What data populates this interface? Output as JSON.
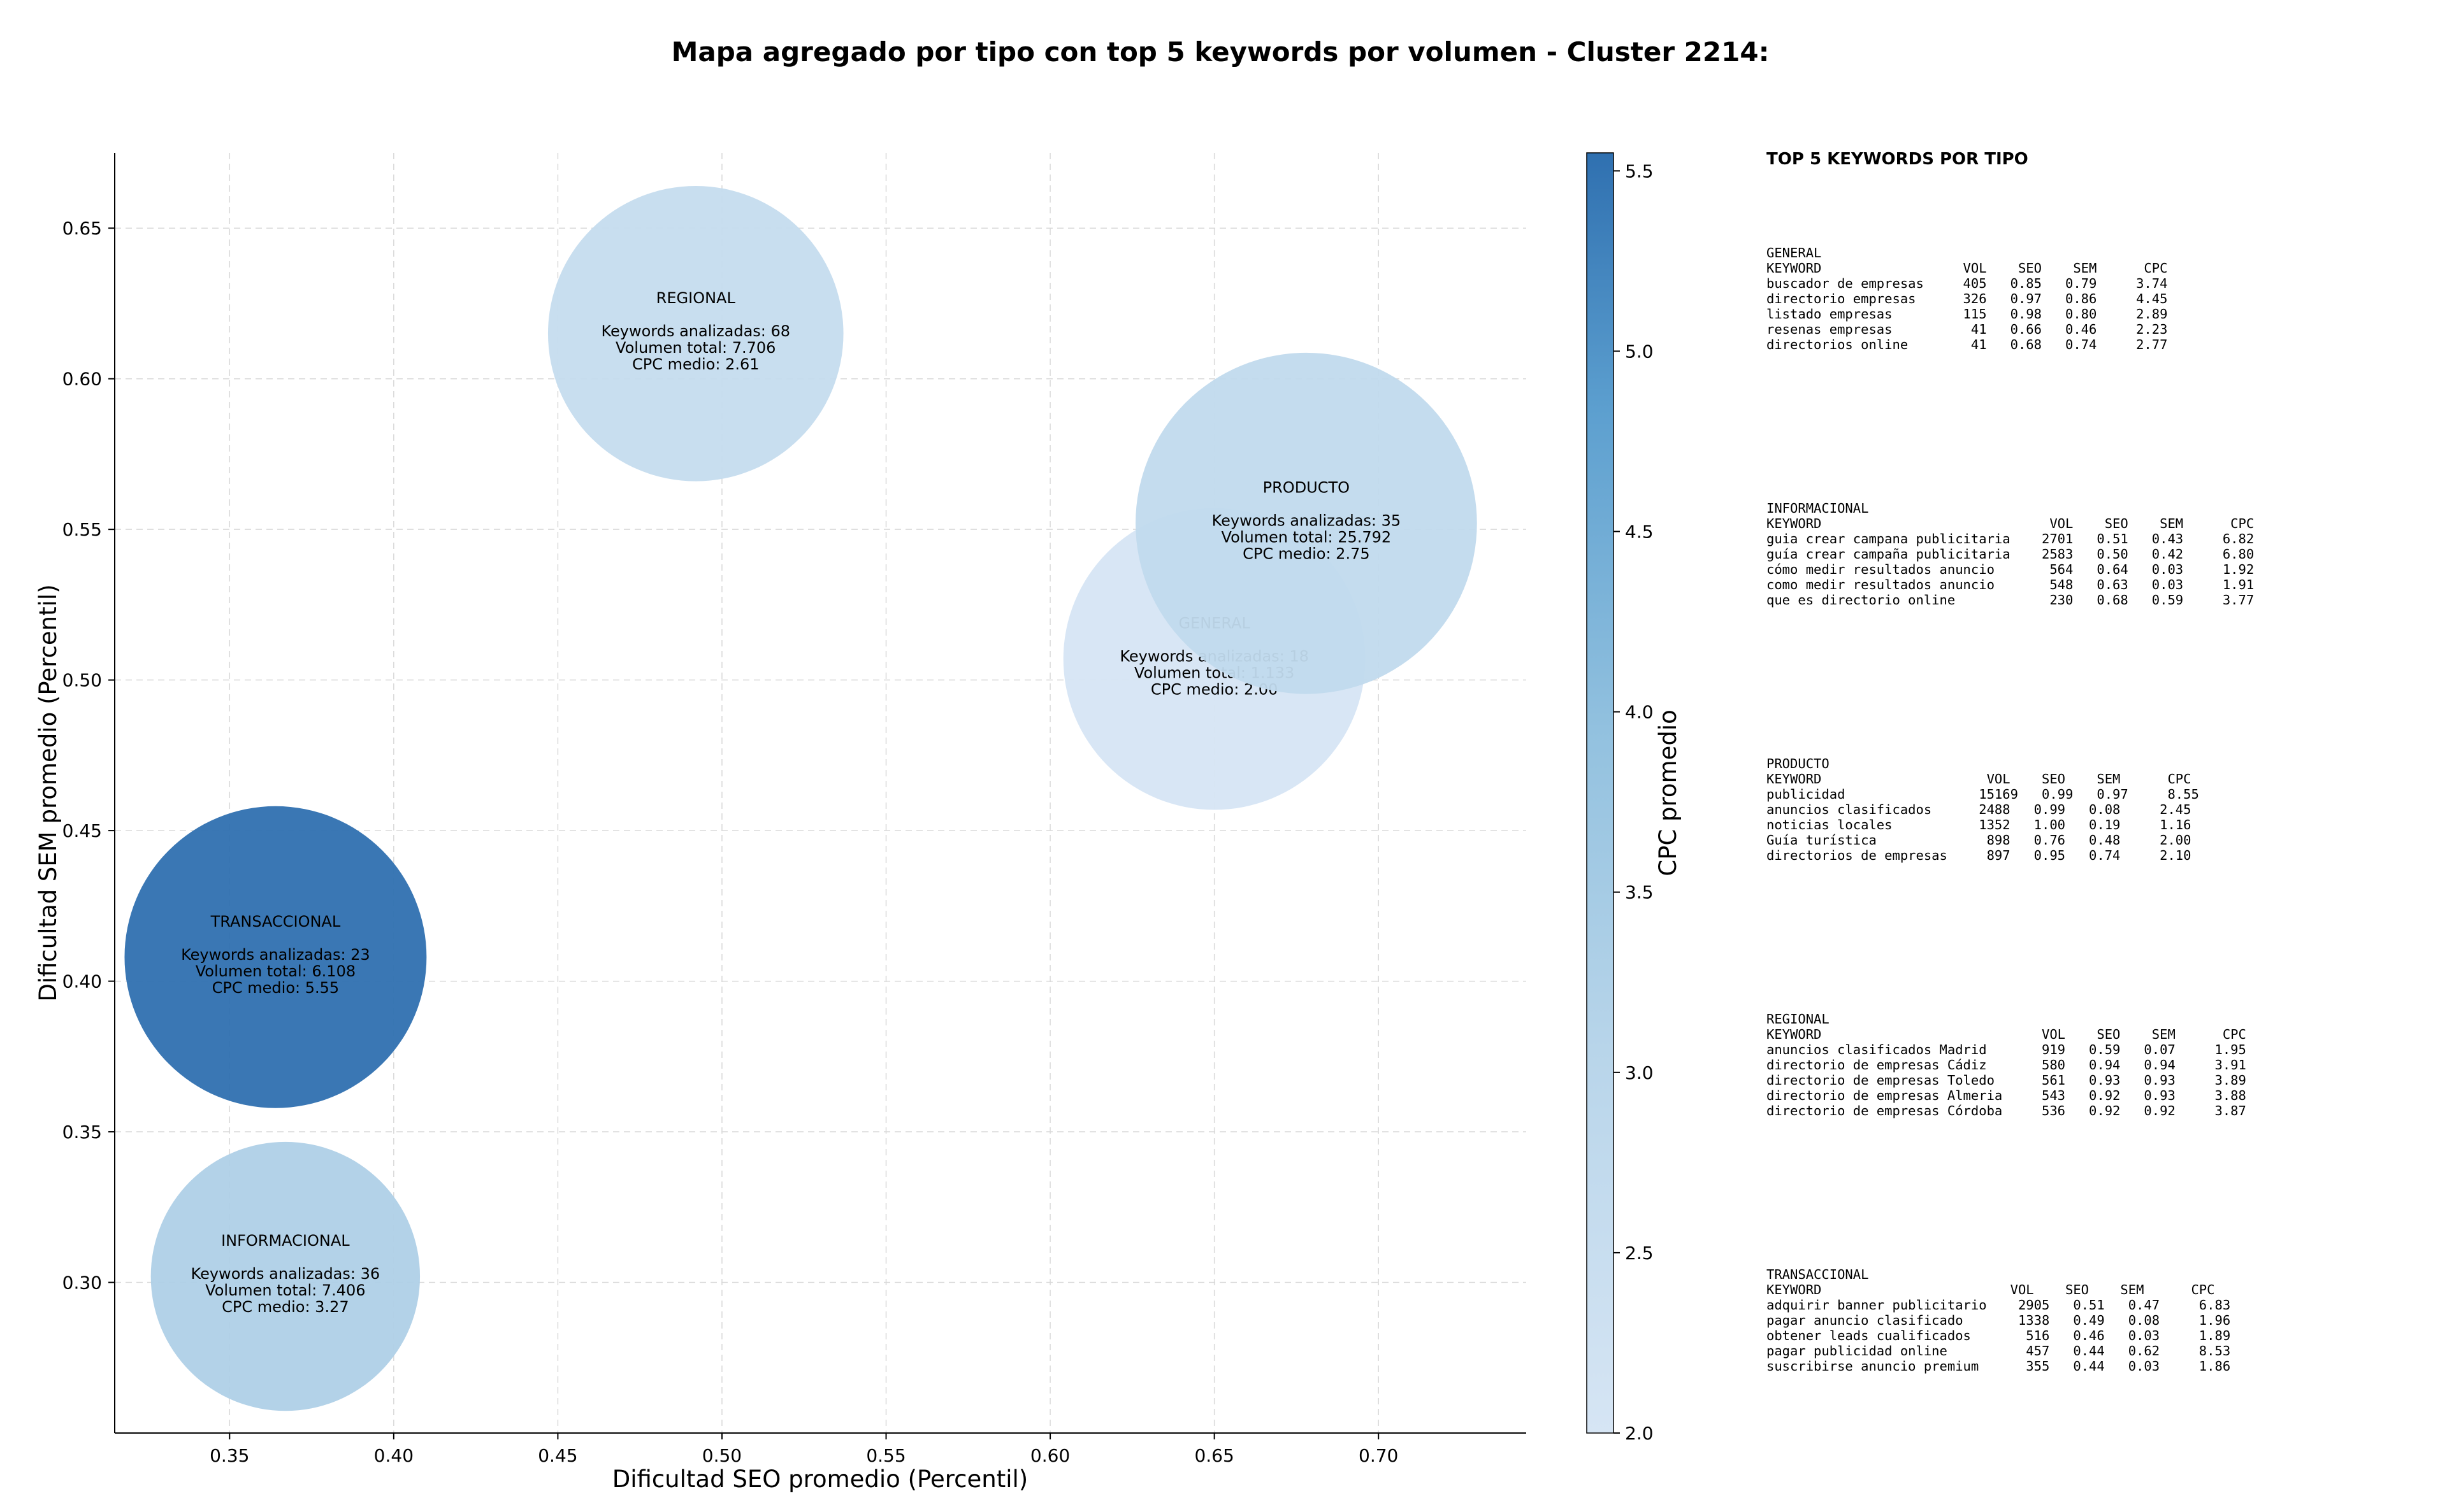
{
  "chart_data": {
    "type": "scatter",
    "title": "Mapa agregado por tipo con top 5 keywords por volumen - Cluster 2214:",
    "xlabel": "Dificultad SEO promedio (Percentil)",
    "ylabel": "Dificultad SEM promedio (Percentil)",
    "xlim": [
      0.315,
      0.745
    ],
    "ylim": [
      0.25,
      0.675
    ],
    "xticks": [
      "0.35",
      "0.40",
      "0.45",
      "0.50",
      "0.55",
      "0.60",
      "0.65",
      "0.70"
    ],
    "yticks": [
      "0.30",
      "0.35",
      "0.40",
      "0.45",
      "0.50",
      "0.55",
      "0.60",
      "0.65"
    ],
    "grid": true,
    "colorbar": {
      "label": "CPC promedio",
      "range": [
        2.0,
        5.55
      ],
      "ticks": [
        "2.0",
        "2.5",
        "3.0",
        "3.5",
        "4.0",
        "4.5",
        "5.0",
        "5.5"
      ]
    },
    "points": [
      {
        "name": "REGIONAL",
        "x": 0.492,
        "y": 0.615,
        "keywords_label": "Keywords analizadas: 68",
        "volume_label": "Volumen total: 7.706",
        "cpc_label": "CPC medio: 2.61",
        "cpc": 2.61,
        "radius": 0.045
      },
      {
        "name": "GENERAL",
        "x": 0.65,
        "y": 0.507,
        "keywords_label": "Keywords analizadas: 18",
        "volume_label": "Volumen total: 1.133",
        "cpc_label": "CPC medio: 2.00",
        "cpc": 2.0,
        "radius": 0.046
      },
      {
        "name": "PRODUCTO",
        "x": 0.678,
        "y": 0.552,
        "keywords_label": "Keywords analizadas: 35",
        "volume_label": "Volumen total: 25.792",
        "cpc_label": "CPC medio: 2.75",
        "cpc": 2.75,
        "radius": 0.052
      },
      {
        "name": "TRANSACCIONAL",
        "x": 0.364,
        "y": 0.408,
        "keywords_label": "Keywords analizadas: 23",
        "volume_label": "Volumen total: 6.108",
        "cpc_label": "CPC medio: 5.55",
        "cpc": 5.55,
        "radius": 0.046
      },
      {
        "name": "INFORMACIONAL",
        "x": 0.367,
        "y": 0.302,
        "keywords_label": "Keywords analizadas: 36",
        "volume_label": "Volumen total: 7.406",
        "cpc_label": "CPC medio: 3.27",
        "cpc": 3.27,
        "radius": 0.041
      }
    ]
  },
  "panel": {
    "title": "TOP 5 KEYWORDS POR TIPO",
    "blocks": [
      {
        "name": "GENERAL",
        "header": "KEYWORD                  VOL    SEO    SEM      CPC",
        "rows": [
          "buscador de empresas     405   0.85   0.79     3.74",
          "directorio empresas      326   0.97   0.86     4.45",
          "listado empresas         115   0.98   0.80     2.89",
          "resenas empresas          41   0.66   0.46     2.23",
          "directorios online        41   0.68   0.74     2.77"
        ]
      },
      {
        "name": "INFORMACIONAL",
        "header": "KEYWORD                             VOL    SEO    SEM      CPC",
        "rows": [
          "guia crear campana publicitaria    2701   0.51   0.43     6.82",
          "guía crear campaña publicitaria    2583   0.50   0.42     6.80",
          "cómo medir resultados anuncio       564   0.64   0.03     1.92",
          "como medir resultados anuncio       548   0.63   0.03     1.91",
          "que es directorio online            230   0.68   0.59     3.77"
        ]
      },
      {
        "name": "PRODUCTO",
        "header": "KEYWORD                     VOL    SEO    SEM      CPC",
        "rows": [
          "publicidad                 15169   0.99   0.97     8.55",
          "anuncios clasificados      2488   0.99   0.08     2.45",
          "noticias locales           1352   1.00   0.19     1.16",
          "Guía turística              898   0.76   0.48     2.00",
          "directorios de empresas     897   0.95   0.74     2.10"
        ]
      },
      {
        "name": "REGIONAL",
        "header": "KEYWORD                            VOL    SEO    SEM      CPC",
        "rows": [
          "anuncios clasificados Madrid       919   0.59   0.07     1.95",
          "directorio de empresas Cádiz       580   0.94   0.94     3.91",
          "directorio de empresas Toledo      561   0.93   0.93     3.89",
          "directorio de empresas Almeria     543   0.92   0.93     3.88",
          "directorio de empresas Córdoba     536   0.92   0.92     3.87"
        ]
      },
      {
        "name": "TRANSACCIONAL",
        "header": "KEYWORD                        VOL    SEO    SEM      CPC",
        "rows": [
          "adquirir banner publicitario    2905   0.51   0.47     6.83",
          "pagar anuncio clasificado       1338   0.49   0.08     1.96",
          "obtener leads cualificados       516   0.46   0.03     1.89",
          "pagar publicidad online          457   0.44   0.62     8.53",
          "suscribirse anuncio premium      355   0.44   0.03     1.86"
        ]
      }
    ]
  }
}
